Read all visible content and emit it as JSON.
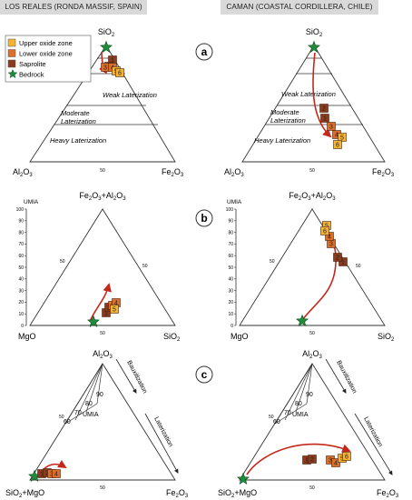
{
  "headers": {
    "left": "LOS REALES (RONDA MASSIF, SPAIN)",
    "right": "CAMAN (COASTAL CORDILLERA, CHILE)"
  },
  "legend": [
    {
      "label": "Upper oxide zone",
      "color": "#f5b335",
      "symbol": "square"
    },
    {
      "label": "Lower oxide zone",
      "color": "#db6e2a",
      "symbol": "square"
    },
    {
      "label": "Saprolite",
      "color": "#8b3a1d",
      "symbol": "square"
    },
    {
      "label": "Bedrock",
      "color": "#1f8b3b",
      "symbol": "star"
    }
  ],
  "panel_letters": {
    "a": "a",
    "b": "b",
    "c": "c"
  },
  "panel_a": {
    "apex_top": "SiO",
    "apex_left": "Al",
    "apex_right": "Fe",
    "zone_labels": [
      "Weak Laterization",
      "Moderate Laterization",
      "Heavy Laterization"
    ],
    "tick_50": "50"
  },
  "panel_b": {
    "apex_top": "Fe",
    "apex_left": "MgO",
    "apex_right": "SiO",
    "axis_title": "UMIA",
    "axis_ticks": [
      "100",
      "90",
      "80",
      "70",
      "60",
      "50",
      "40",
      "30",
      "20",
      "10",
      "0"
    ],
    "tick_50": "50"
  },
  "panel_c": {
    "apex_top": "Al",
    "apex_left": "SiO",
    "apex_right": "Fe",
    "umia_label": "UMIA",
    "umia_ticks": [
      "90",
      "80",
      "70",
      "60"
    ],
    "bauxitization": "Bauxitization",
    "laterization": "Laterization",
    "tick_50": "50"
  },
  "samples": {
    "a_left": [
      "1",
      "2",
      "3",
      "4",
      "5",
      "6"
    ],
    "a_right": [
      "1",
      "2",
      "3",
      "4",
      "5",
      "6"
    ],
    "b_left": [
      "1",
      "2",
      "3",
      "4",
      "5"
    ],
    "b_right": [
      "1",
      "2",
      "3",
      "4",
      "5",
      "6"
    ],
    "c_left": [
      "1",
      "2",
      "3",
      "4"
    ],
    "c_right": [
      "1",
      "2",
      "3",
      "4",
      "5",
      "6"
    ]
  }
}
